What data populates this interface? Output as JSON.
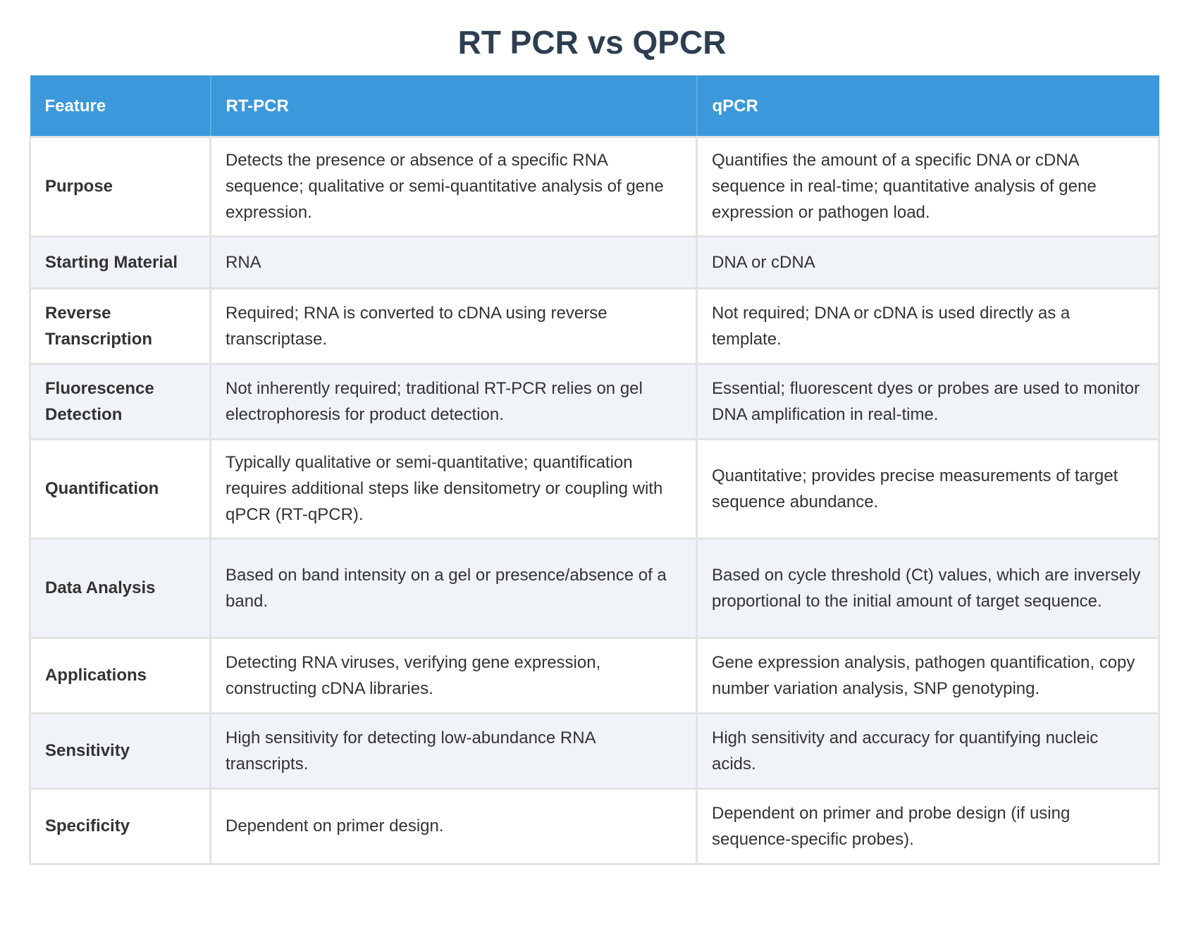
{
  "title": "RT PCR vs QPCR",
  "table": {
    "headers": [
      "Feature",
      "RT-PCR",
      "qPCR"
    ],
    "rows": [
      {
        "feature": "Purpose",
        "rt_pcr": "Detects the presence or absence of a specific RNA sequence; qualitative or semi-quantitative analysis of gene expression.",
        "qpcr": "Quantifies the amount of a specific DNA or cDNA sequence in real-time; quantitative analysis of gene expression or pathogen load."
      },
      {
        "feature": "Starting Material",
        "rt_pcr": "RNA",
        "qpcr": "DNA or cDNA"
      },
      {
        "feature": "Reverse Transcription",
        "rt_pcr": "Required; RNA is converted to cDNA using reverse transcriptase.",
        "qpcr": "Not required; DNA or cDNA is used directly as a template."
      },
      {
        "feature": "Fluorescence Detection",
        "rt_pcr": "Not inherently required; traditional RT-PCR relies on gel electrophoresis for product detection.",
        "qpcr": "Essential; fluorescent dyes or probes are used to monitor DNA amplification in real-time."
      },
      {
        "feature": "Quantification",
        "rt_pcr": "Typically qualitative or semi-quantitative; quantification requires additional steps like densitometry or coupling with qPCR (RT-qPCR).",
        "qpcr": "Quantitative; provides precise measurements of target sequence abundance."
      },
      {
        "feature": "Data Analysis",
        "rt_pcr": "Based on band intensity on a gel or presence/absence of a band.",
        "qpcr": "Based on cycle threshold (Ct) values, which are inversely proportional to the initial amount of target sequence."
      },
      {
        "feature": "Applications",
        "rt_pcr": "Detecting RNA viruses, verifying gene expression, constructing cDNA libraries.",
        "qpcr": "Gene expression analysis, pathogen quantification, copy number variation analysis, SNP genotyping."
      },
      {
        "feature": "Sensitivity",
        "rt_pcr": "High sensitivity for detecting low-abundance RNA transcripts.",
        "qpcr": "High sensitivity and accuracy for quantifying nucleic acids."
      },
      {
        "feature": "Specificity",
        "rt_pcr": "Dependent on primer design.",
        "qpcr": "Dependent on primer and probe design (if using sequence-specific probes)."
      }
    ]
  },
  "colors": {
    "header_bg": "#3b99db",
    "title": "#2c3e50",
    "stripe": "#f0f3f8",
    "border": "#e3e3e3"
  }
}
